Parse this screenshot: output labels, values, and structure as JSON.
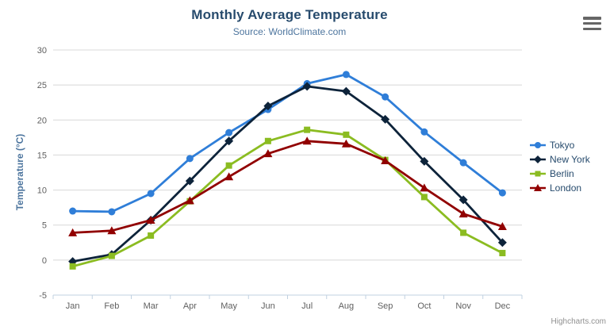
{
  "credits": {
    "label": "Highcharts.com"
  },
  "menu": {
    "icon": "hamburger-icon"
  },
  "chart_data": {
    "type": "line",
    "title": "Monthly Average Temperature",
    "subtitle": "Source: WorldClimate.com",
    "xlabel": "",
    "ylabel": "Temperature (°C)",
    "categories": [
      "Jan",
      "Feb",
      "Mar",
      "Apr",
      "May",
      "Jun",
      "Jul",
      "Aug",
      "Sep",
      "Oct",
      "Nov",
      "Dec"
    ],
    "ylim": [
      -5,
      30
    ],
    "ytick_interval": 5,
    "grid": true,
    "legend_position": "right",
    "colors": {
      "grid": "#d8d8d8",
      "axis_line": "#c0d0e0",
      "tick_label": "#606060",
      "title": "#274b6d",
      "subtitle": "#4d759e"
    },
    "series": [
      {
        "name": "Tokyo",
        "color": "#2f7ed8",
        "marker": "circle",
        "values": [
          7.0,
          6.9,
          9.5,
          14.5,
          18.2,
          21.5,
          25.2,
          26.5,
          23.3,
          18.3,
          13.9,
          9.6
        ]
      },
      {
        "name": "New York",
        "color": "#0d233a",
        "marker": "diamond",
        "values": [
          -0.2,
          0.8,
          5.7,
          11.3,
          17.0,
          22.0,
          24.8,
          24.1,
          20.1,
          14.1,
          8.6,
          2.5
        ]
      },
      {
        "name": "Berlin",
        "color": "#8bbc21",
        "marker": "square",
        "values": [
          -0.9,
          0.6,
          3.5,
          8.4,
          13.5,
          17.0,
          18.6,
          17.9,
          14.3,
          9.0,
          3.9,
          1.0
        ]
      },
      {
        "name": "London",
        "color": "#910000",
        "marker": "triangle",
        "values": [
          3.9,
          4.2,
          5.7,
          8.5,
          11.9,
          15.2,
          17.0,
          16.6,
          14.2,
          10.3,
          6.6,
          4.8
        ]
      }
    ]
  }
}
